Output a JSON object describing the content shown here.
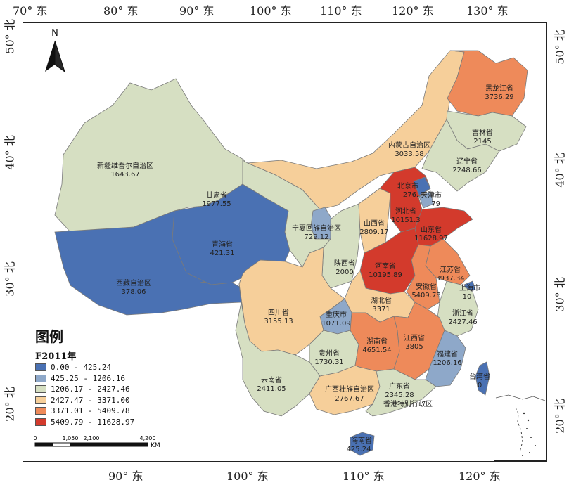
{
  "axes": {
    "top": [
      "70° 东",
      "80° 东",
      "90° 东",
      "100° 东",
      "110° 东",
      "120° 东",
      "130° 东"
    ],
    "bottom": [
      "90° 东",
      "100° 东",
      "110° 东",
      "120° 东"
    ],
    "left": [
      "50° 北",
      "40° 北",
      "30° 北",
      "20° 北"
    ],
    "right": [
      "50° 北",
      "40° 北",
      "30° 北",
      "20° 北"
    ]
  },
  "north_label": "N",
  "legend": {
    "title": "图例",
    "field": "F2011年",
    "classes": [
      {
        "range": "0.00 - 425.24",
        "color": "#4a71b3"
      },
      {
        "range": "425.25 - 1206.16",
        "color": "#8ea8c9"
      },
      {
        "range": "1206.17 - 2427.46",
        "color": "#d6dfc2"
      },
      {
        "range": "2427.47 - 3371.00",
        "color": "#f6cf9a"
      },
      {
        "range": "3371.01 - 5409.78",
        "color": "#ee8a5a"
      },
      {
        "range": "5409.79 - 11628.97",
        "color": "#d33a2c"
      }
    ]
  },
  "scale": {
    "labels": [
      "0",
      "1,050",
      "2,100",
      "4,200"
    ],
    "unit": "KM"
  },
  "provinces": [
    {
      "name": "新疆维吾尔自治区",
      "value": "1643.67"
    },
    {
      "name": "西藏自治区",
      "value": "378.06"
    },
    {
      "name": "青海省",
      "value": "421.31"
    },
    {
      "name": "甘肃省",
      "value": "1977.55"
    },
    {
      "name": "内蒙古自治区",
      "value": "3033.58"
    },
    {
      "name": "黑龙江省",
      "value": "3736.29"
    },
    {
      "name": "吉林省",
      "value": "2145"
    },
    {
      "name": "辽宁省",
      "value": "2248.66"
    },
    {
      "name": "北京市",
      "value": "276."
    },
    {
      "name": "天津市",
      "value": ".79"
    },
    {
      "name": "河北省",
      "value": "10151.3"
    },
    {
      "name": "山东省",
      "value": "11628.97"
    },
    {
      "name": "山西省",
      "value": "2809.17"
    },
    {
      "name": "宁夏回族自治区",
      "value": "729.12"
    },
    {
      "name": "陕西省",
      "value": "2000"
    },
    {
      "name": "河南省",
      "value": "10195.89"
    },
    {
      "name": "江苏省",
      "value": "3937.34"
    },
    {
      "name": "安徽省",
      "value": "5409.78"
    },
    {
      "name": "上海市",
      "value": "10"
    },
    {
      "name": "浙江省",
      "value": "2427.46"
    },
    {
      "name": "湖北省",
      "value": "3371"
    },
    {
      "name": "四川省",
      "value": "3155.13"
    },
    {
      "name": "重庆市",
      "value": "1071.09"
    },
    {
      "name": "湖南省",
      "value": "4651.54"
    },
    {
      "name": "江西省",
      "value": "3805"
    },
    {
      "name": "福建省",
      "value": "1206.16"
    },
    {
      "name": "贵州省",
      "value": "1730.31"
    },
    {
      "name": "云南省",
      "value": "2411.05"
    },
    {
      "name": "广西壮族自治区",
      "value": "2767.67"
    },
    {
      "name": "广东省",
      "value": "2345.28"
    },
    {
      "name": "香港特别行政区",
      "value": "香港特别行政区"
    },
    {
      "name": "台湾省",
      "value": "0"
    },
    {
      "name": "海南省",
      "value": "425.24"
    }
  ]
}
